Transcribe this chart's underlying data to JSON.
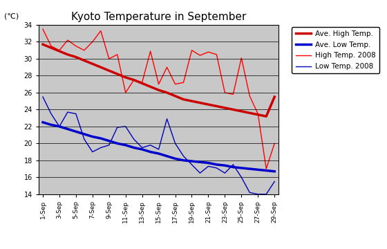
{
  "title": "Kyoto Temperature in September",
  "ylabel": "(℃)",
  "plot_bg_color": "#c8c8c8",
  "fig_bg_color": "#ffffff",
  "ylim": [
    14,
    34
  ],
  "yticks": [
    14,
    16,
    18,
    20,
    22,
    24,
    26,
    28,
    30,
    32,
    34
  ],
  "xtick_labels": [
    "1-Sep",
    "3-Sep",
    "5-Sep",
    "7-Sep",
    "9-Sep",
    "11-Sep",
    "13-Sep",
    "15-Sep",
    "17-Sep",
    "19-Sep",
    "21-Sep",
    "23-Sep",
    "25-Sep",
    "27-Sep",
    "29-Sep"
  ],
  "high_2008": [
    33.5,
    31.5,
    31.0,
    32.2,
    31.5,
    31.0,
    32.0,
    33.3,
    30.0,
    30.5,
    26.0,
    27.5,
    27.2,
    30.9,
    27.0,
    29.0,
    27.0,
    27.2,
    31.0,
    30.4,
    30.8,
    30.5,
    26.0,
    25.8,
    30.1,
    25.6,
    23.5,
    17.0,
    20.0
  ],
  "low_2008": [
    25.5,
    23.5,
    22.0,
    23.7,
    23.5,
    20.5,
    19.0,
    19.5,
    19.8,
    21.9,
    22.0,
    20.5,
    19.5,
    19.8,
    19.3,
    22.9,
    20.0,
    18.5,
    17.5,
    16.5,
    17.3,
    17.1,
    16.5,
    17.5,
    16.0,
    14.2,
    14.0,
    14.0,
    15.5
  ],
  "ave_high": [
    31.7,
    31.3,
    30.9,
    30.5,
    30.2,
    29.8,
    29.4,
    29.0,
    28.6,
    28.2,
    27.8,
    27.5,
    27.1,
    26.7,
    26.3,
    26.0,
    25.6,
    25.2,
    25.0,
    24.8,
    24.6,
    24.4,
    24.2,
    24.0,
    23.8,
    23.6,
    23.4,
    23.2,
    25.5
  ],
  "ave_low": [
    22.5,
    22.2,
    22.0,
    21.7,
    21.4,
    21.1,
    20.8,
    20.6,
    20.3,
    20.0,
    19.8,
    19.5,
    19.3,
    19.0,
    18.8,
    18.5,
    18.2,
    18.0,
    17.9,
    17.8,
    17.7,
    17.5,
    17.4,
    17.2,
    17.1,
    17.0,
    16.9,
    16.8,
    16.7
  ],
  "high_2008_color": "#ff0000",
  "low_2008_color": "#0000bb",
  "ave_high_color": "#cc0000",
  "ave_low_color": "#0000cc",
  "ave_high_lw": 2.5,
  "ave_low_lw": 2.5,
  "data_lw": 1.0,
  "legend_labels": [
    "Ave. High Temp.",
    "Ave. Low Temp.",
    "High Temp. 2008",
    "Low Temp. 2008"
  ]
}
